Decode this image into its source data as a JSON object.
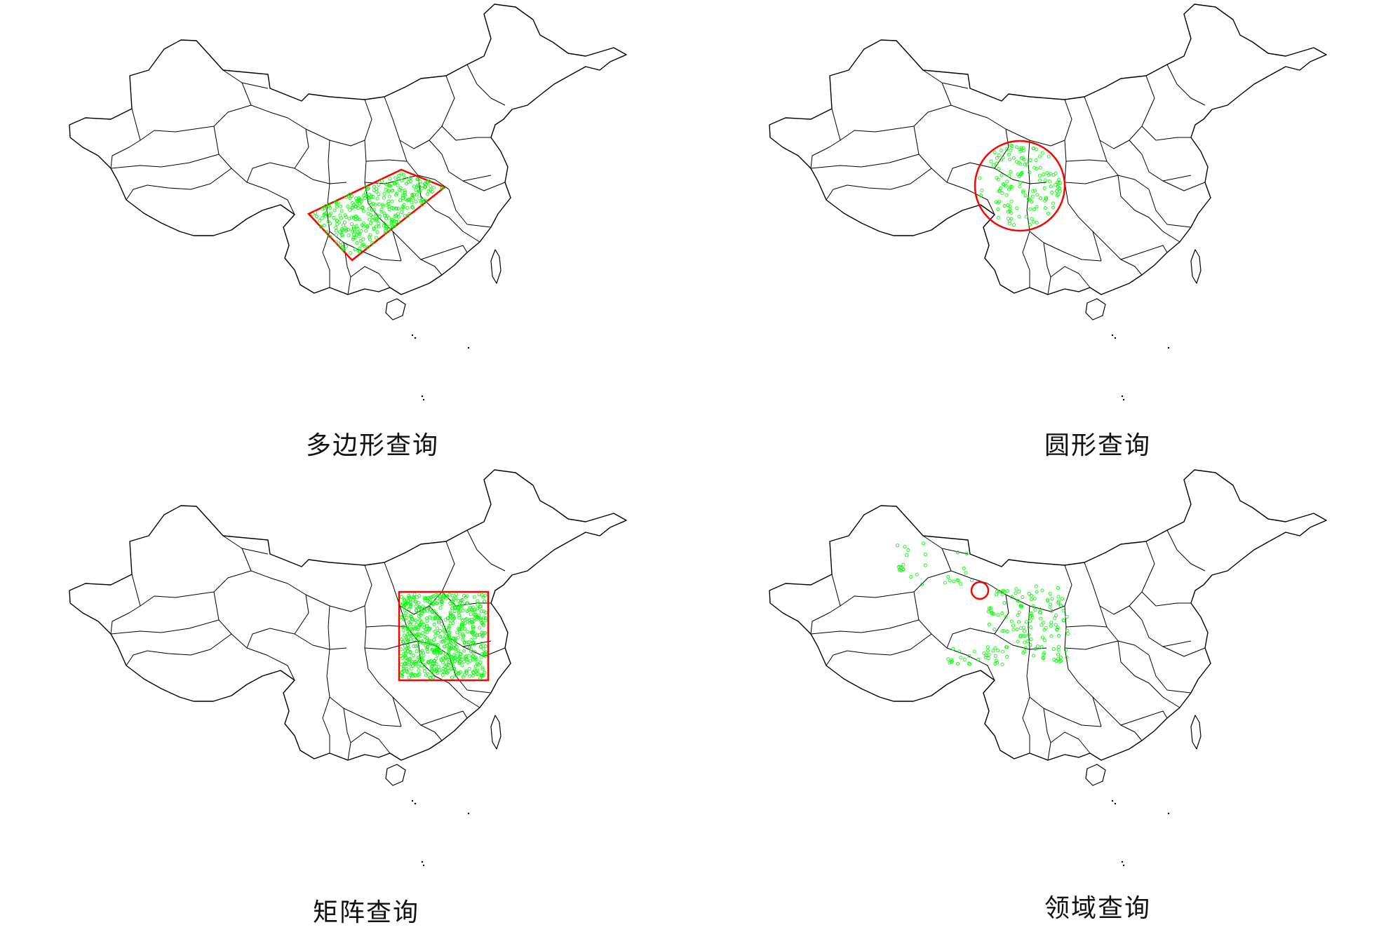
{
  "colors": {
    "outline": "#000000",
    "query_shape": "#ff0000",
    "result_point": "#00ff00",
    "background": "#ffffff"
  },
  "panels": [
    {
      "caption": "多边形查询",
      "query": "polygon"
    },
    {
      "caption": "圆形查询",
      "query": "circle"
    },
    {
      "caption": "矩阵查询",
      "query": "rectangle"
    },
    {
      "caption": "领域查询",
      "query": "neighborhood"
    }
  ]
}
